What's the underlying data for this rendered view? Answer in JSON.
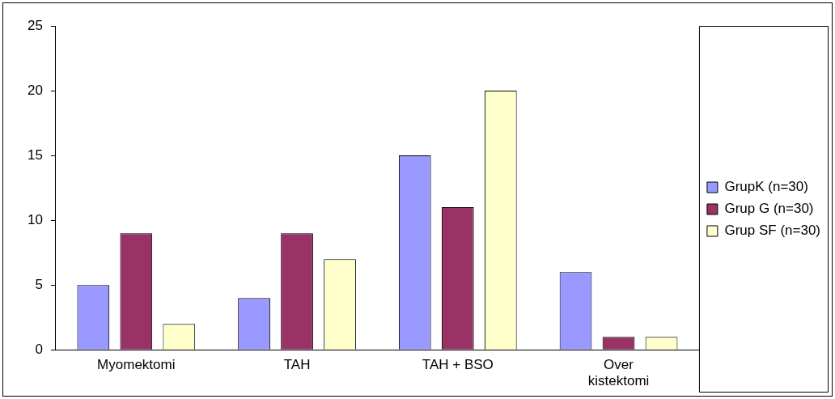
{
  "chart_data": {
    "type": "bar",
    "categories": [
      "Myomektomi",
      "TAH",
      "TAH + BSO",
      "Over kistektomi"
    ],
    "series": [
      {
        "name": "GrupK (n=30)",
        "color": "#9999ff",
        "values": [
          5,
          4,
          15,
          6
        ]
      },
      {
        "name": "Grup G (n=30)",
        "color": "#993366",
        "values": [
          9,
          9,
          11,
          1
        ]
      },
      {
        "name": "Grup SF (n=30)",
        "color": "#ffffcc",
        "values": [
          2,
          7,
          20,
          1
        ]
      }
    ],
    "ylim": [
      0,
      25
    ],
    "yticks": [
      0,
      5,
      10,
      15,
      20,
      25
    ],
    "grid": false,
    "legend": "right"
  }
}
